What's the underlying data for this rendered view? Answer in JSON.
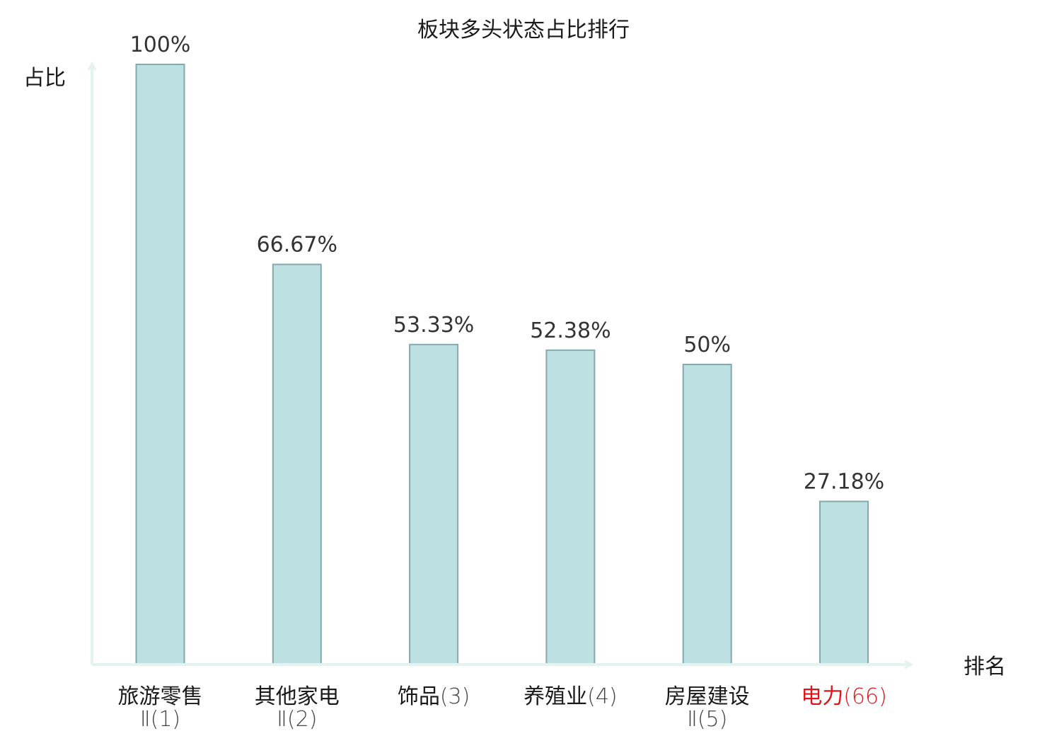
{
  "chart_data": {
    "type": "bar",
    "title": "板块多头状态占比排行",
    "ylabel": "占比",
    "xlabel": "排名",
    "ylim": [
      0,
      100
    ],
    "grid": false,
    "categories": [
      {
        "line1": "旅游零售",
        "line1_suffix": "",
        "line2": "Ⅱ(1)",
        "highlight": false
      },
      {
        "line1": "其他家电",
        "line1_suffix": "",
        "line2": "Ⅱ(2)",
        "highlight": false
      },
      {
        "line1": "饰品",
        "line1_suffix": "(3)",
        "line2": "",
        "highlight": false
      },
      {
        "line1": "养殖业",
        "line1_suffix": "(4)",
        "line2": "",
        "highlight": false
      },
      {
        "line1": "房屋建设",
        "line1_suffix": "",
        "line2": "Ⅱ(5)",
        "highlight": false
      },
      {
        "line1": "电力",
        "line1_suffix": "(66)",
        "line2": "",
        "highlight": true
      }
    ],
    "values": [
      100,
      66.67,
      53.33,
      52.38,
      50,
      27.18
    ],
    "value_labels": [
      "100%",
      "66.67%",
      "53.33%",
      "52.38%",
      "50%",
      "27.18%"
    ],
    "colors": {
      "bar_fill": "#bde0e3",
      "bar_stroke": "#86a9ac",
      "axis": "#e3f3f0",
      "highlight_text": "#e0141b"
    }
  }
}
